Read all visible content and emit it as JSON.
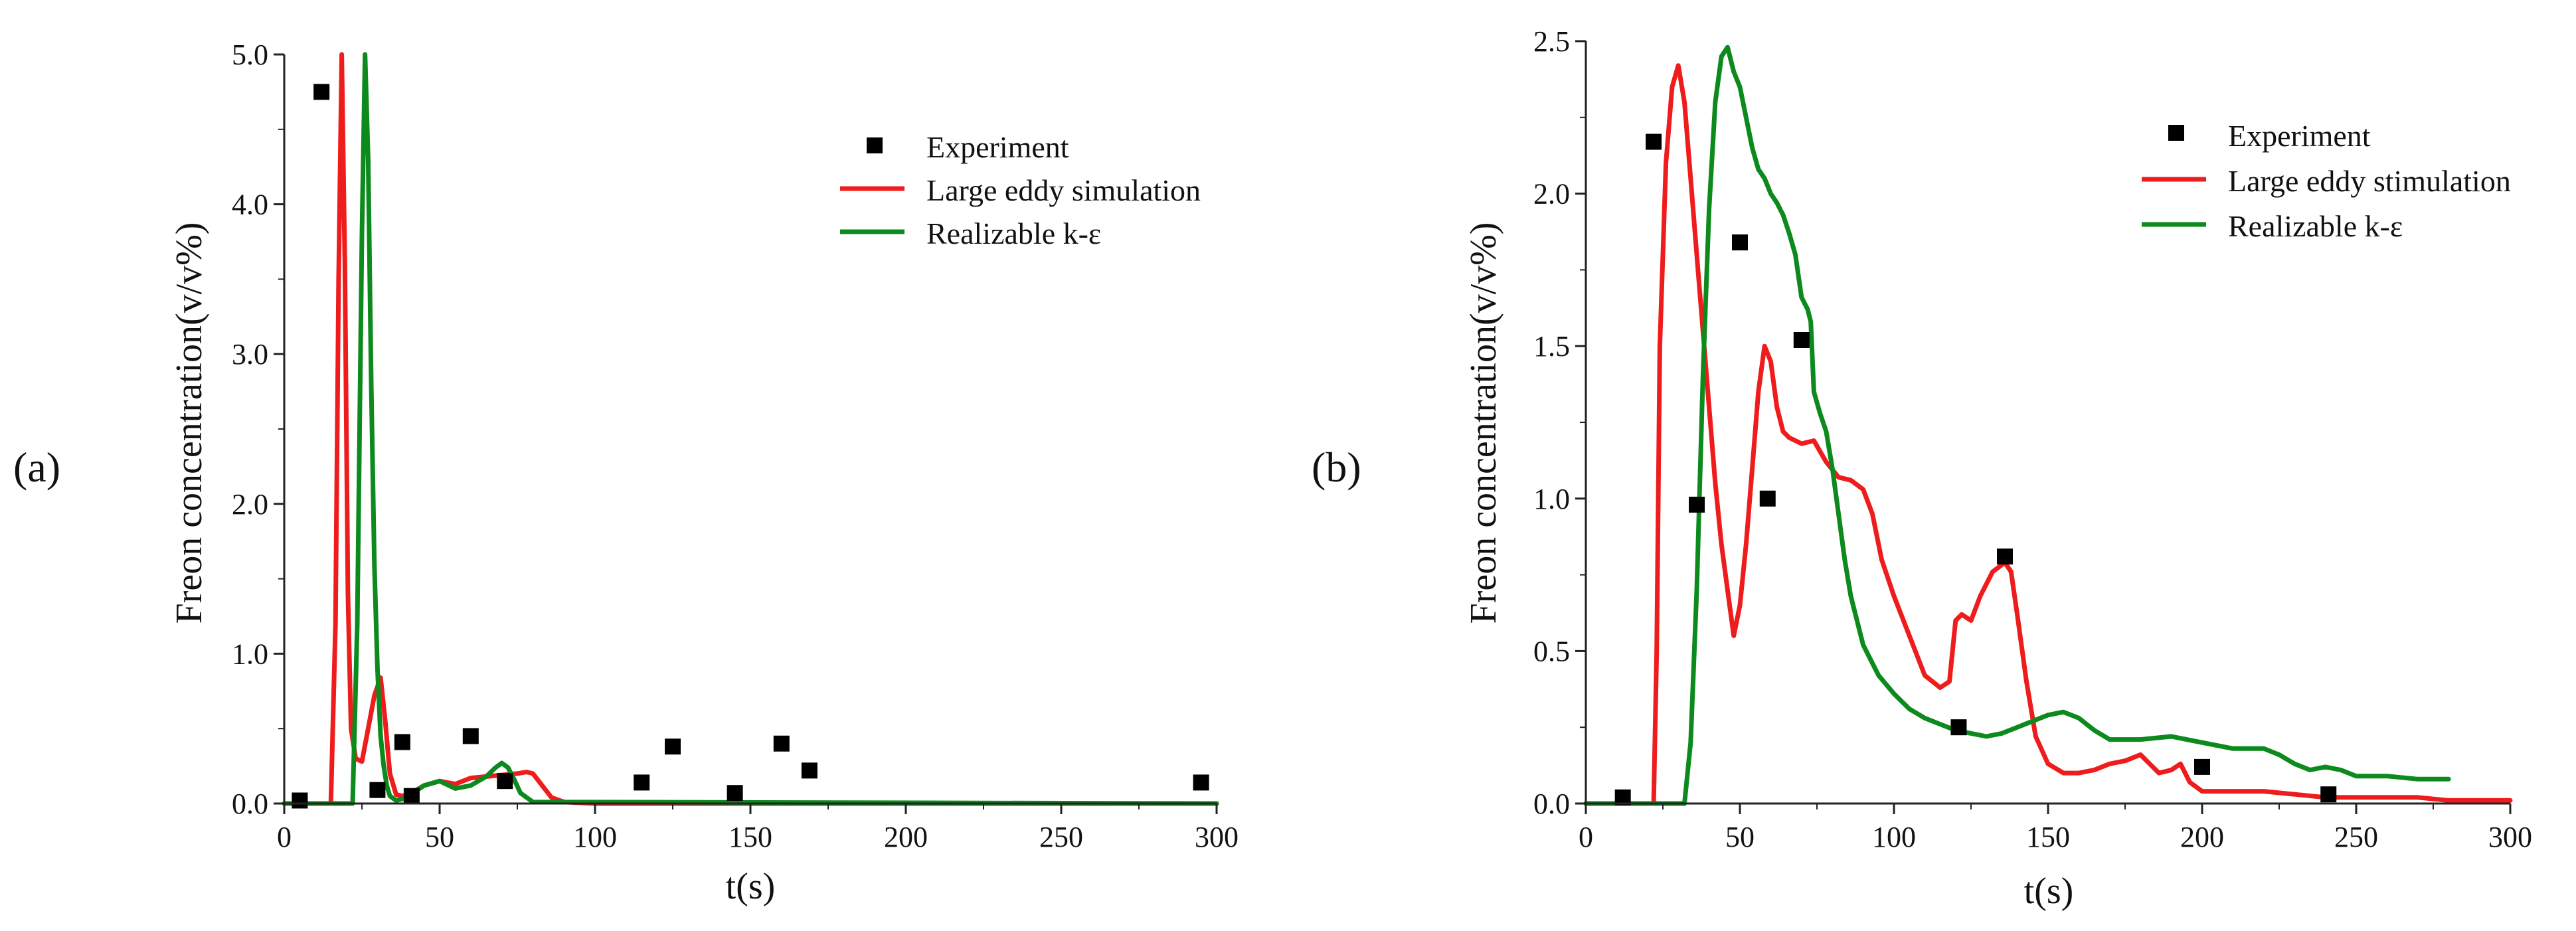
{
  "colors": {
    "experiment": "#000000",
    "les": "#ee1c1c",
    "rke": "#0d8a1d",
    "axis": "#222222"
  },
  "chart_data": [
    {
      "type": "line",
      "panel_label": "(a)",
      "xlabel": "t(s)",
      "ylabel": "Freon concentration(v/v%)",
      "xlim": [
        0,
        300
      ],
      "ylim": [
        0,
        5.0
      ],
      "xticks": [
        0,
        50,
        100,
        150,
        200,
        250,
        300
      ],
      "xtick_labels": [
        "0",
        "50",
        "100",
        "150",
        "200",
        "250",
        "300"
      ],
      "yticks": [
        0,
        1,
        2,
        3,
        4,
        5
      ],
      "ytick_labels": [
        "0.0",
        "1.0",
        "2.0",
        "3.0",
        "4.0",
        "5.0"
      ],
      "legend": {
        "position": "top-right",
        "entries": [
          {
            "label": "Experiment",
            "marker": "square",
            "series": "experiment"
          },
          {
            "label": "Large eddy simulation",
            "marker": "line",
            "series": "les"
          },
          {
            "label": "Realizable k-ε",
            "marker": "line",
            "series": "rke"
          }
        ]
      },
      "series": [
        {
          "name": "Experiment",
          "key": "experiment",
          "kind": "scatter",
          "x": [
            5,
            12,
            30,
            38,
            41,
            60,
            71,
            115,
            125,
            145,
            160,
            169,
            295
          ],
          "y": [
            0.02,
            4.75,
            0.09,
            0.41,
            0.05,
            0.45,
            0.15,
            0.14,
            0.38,
            0.07,
            0.4,
            0.22,
            0.14
          ]
        },
        {
          "name": "Large eddy simulation",
          "key": "les",
          "kind": "line",
          "x": [
            0,
            15,
            16.5,
            17.5,
            18.5,
            19.5,
            20.5,
            21.5,
            23,
            25,
            27,
            29,
            31,
            32.5,
            34,
            36,
            38,
            40,
            45,
            50,
            55,
            60,
            65,
            70,
            75,
            78,
            80,
            83,
            86,
            90,
            100,
            300
          ],
          "y": [
            0,
            0,
            1.2,
            3.5,
            5.0,
            3.6,
            1.4,
            0.5,
            0.3,
            0.28,
            0.5,
            0.72,
            0.84,
            0.55,
            0.2,
            0.06,
            0.05,
            0.06,
            0.12,
            0.15,
            0.13,
            0.17,
            0.18,
            0.19,
            0.2,
            0.21,
            0.2,
            0.12,
            0.04,
            0.01,
            0,
            0
          ]
        },
        {
          "name": "Realizable k-ε",
          "key": "rke",
          "kind": "line",
          "x": [
            0,
            22,
            23.5,
            25,
            26,
            27,
            28,
            29,
            30,
            31,
            32,
            33,
            34,
            36,
            38,
            40,
            45,
            50,
            55,
            60,
            65,
            68,
            70,
            72,
            74,
            76,
            80,
            300
          ],
          "y": [
            0,
            0,
            1.2,
            3.8,
            5.0,
            4.3,
            2.8,
            1.6,
            0.9,
            0.45,
            0.25,
            0.12,
            0.05,
            0.02,
            0.03,
            0.05,
            0.12,
            0.15,
            0.1,
            0.12,
            0.18,
            0.24,
            0.27,
            0.24,
            0.16,
            0.07,
            0.01,
            0
          ]
        }
      ]
    },
    {
      "type": "line",
      "panel_label": "(b)",
      "xlabel": "t(s)",
      "ylabel": "Freon concentration(v/v%)",
      "xlim": [
        0,
        300
      ],
      "ylim": [
        0,
        2.5
      ],
      "xticks": [
        0,
        50,
        100,
        150,
        200,
        250,
        300
      ],
      "xtick_labels": [
        "0",
        "50",
        "100",
        "150",
        "200",
        "250",
        "300"
      ],
      "yticks": [
        0,
        0.5,
        1,
        1.5,
        2,
        2.5
      ],
      "ytick_labels": [
        "0.0",
        "0.5",
        "1.0",
        "1.5",
        "2.0",
        "2.5"
      ],
      "legend": {
        "position": "top-right",
        "entries": [
          {
            "label": "Experiment",
            "marker": "square",
            "series": "experiment"
          },
          {
            "label": "Large eddy stimulation",
            "marker": "line",
            "series": "les"
          },
          {
            "label": "Realizable k-ε",
            "marker": "line",
            "series": "rke"
          }
        ]
      },
      "series": [
        {
          "name": "Experiment",
          "key": "experiment",
          "kind": "scatter",
          "x": [
            12,
            22,
            36,
            50,
            59,
            70,
            121,
            136,
            200,
            241
          ],
          "y": [
            0.02,
            2.17,
            0.98,
            1.84,
            1.0,
            1.52,
            0.25,
            0.81,
            0.12,
            0.03
          ]
        },
        {
          "name": "Large eddy stimulation",
          "key": "les",
          "kind": "line",
          "x": [
            0,
            22,
            23,
            24,
            26,
            28,
            30,
            32,
            34,
            36,
            38,
            40,
            42,
            44,
            46,
            48,
            50,
            52,
            54,
            56,
            58,
            60,
            62,
            64,
            66,
            70,
            74,
            78,
            82,
            86,
            90,
            93,
            96,
            100,
            105,
            110,
            115,
            118,
            120,
            122,
            125,
            128,
            132,
            136,
            138,
            140,
            143,
            146,
            150,
            155,
            160,
            165,
            170,
            175,
            180,
            183,
            186,
            190,
            193,
            196,
            200,
            210,
            220,
            230,
            240,
            250,
            260,
            270,
            280,
            290,
            300
          ],
          "y": [
            0,
            0,
            0.5,
            1.5,
            2.1,
            2.35,
            2.42,
            2.3,
            2.05,
            1.8,
            1.55,
            1.3,
            1.05,
            0.85,
            0.7,
            0.55,
            0.65,
            0.85,
            1.1,
            1.35,
            1.5,
            1.45,
            1.3,
            1.22,
            1.2,
            1.18,
            1.19,
            1.12,
            1.07,
            1.06,
            1.03,
            0.95,
            0.8,
            0.68,
            0.55,
            0.42,
            0.38,
            0.4,
            0.6,
            0.62,
            0.6,
            0.68,
            0.76,
            0.79,
            0.76,
            0.62,
            0.4,
            0.22,
            0.13,
            0.1,
            0.1,
            0.11,
            0.13,
            0.14,
            0.16,
            0.13,
            0.1,
            0.11,
            0.13,
            0.07,
            0.04,
            0.04,
            0.04,
            0.03,
            0.02,
            0.02,
            0.02,
            0.02,
            0.01,
            0.01,
            0.01
          ]
        },
        {
          "name": "Realizable k-ε",
          "key": "rke",
          "kind": "line",
          "x": [
            0,
            32,
            34,
            36,
            38,
            40,
            42,
            44,
            46,
            48,
            50,
            52,
            54,
            56,
            58,
            60,
            62,
            64,
            66,
            68,
            70,
            72,
            73,
            74,
            76,
            78,
            80,
            82,
            84,
            86,
            90,
            95,
            100,
            105,
            110,
            115,
            120,
            125,
            130,
            135,
            140,
            145,
            150,
            155,
            160,
            165,
            170,
            180,
            190,
            200,
            210,
            220,
            225,
            230,
            235,
            240,
            245,
            250,
            260,
            270,
            280
          ],
          "y": [
            0,
            0,
            0.2,
            0.7,
            1.4,
            1.95,
            2.3,
            2.45,
            2.48,
            2.4,
            2.35,
            2.25,
            2.15,
            2.08,
            2.05,
            2.0,
            1.97,
            1.93,
            1.87,
            1.8,
            1.66,
            1.62,
            1.58,
            1.35,
            1.28,
            1.22,
            1.1,
            0.95,
            0.8,
            0.68,
            0.52,
            0.42,
            0.36,
            0.31,
            0.28,
            0.26,
            0.24,
            0.23,
            0.22,
            0.23,
            0.25,
            0.27,
            0.29,
            0.3,
            0.28,
            0.24,
            0.21,
            0.21,
            0.22,
            0.2,
            0.18,
            0.18,
            0.16,
            0.13,
            0.11,
            0.12,
            0.11,
            0.09,
            0.09,
            0.08,
            0.08
          ]
        }
      ]
    }
  ]
}
